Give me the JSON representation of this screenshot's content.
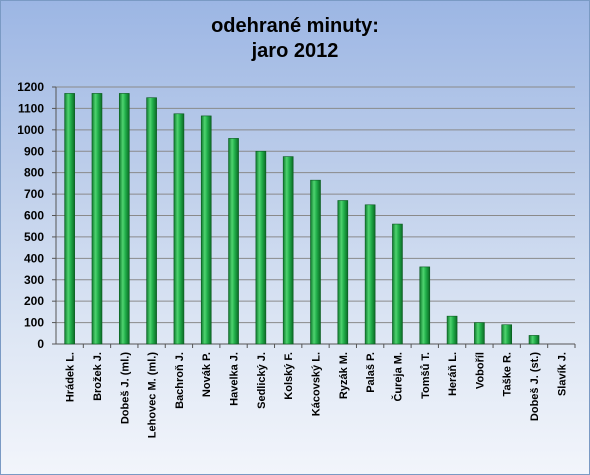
{
  "chart_data": {
    "type": "bar",
    "title_line1": "odehrané minuty:",
    "title_line2": "jaro 2012",
    "xlabel": "",
    "ylabel": "",
    "ylim": [
      0,
      1200
    ],
    "yticks": [
      0,
      100,
      200,
      300,
      400,
      500,
      600,
      700,
      800,
      900,
      1000,
      1100,
      1200
    ],
    "grid": true,
    "legend": "none",
    "bar_color": "#1fae48",
    "categories": [
      "Hrádek L.",
      "Brožek J.",
      "Dobeš J. (ml.)",
      "Lehovec M. (ml.)",
      "Bachroň J.",
      "Novák P.",
      "Havelka J.",
      "Sedlický J.",
      "Kolský F.",
      "Kácovský L.",
      "Ryzák M.",
      "Palaš P.",
      "Čureja M.",
      "Tomšů T.",
      "Heráň L.",
      "Voboříl",
      "Taške R.",
      "Dobeš J. (st.)",
      "Slavík J."
    ],
    "values": [
      1170,
      1170,
      1170,
      1150,
      1075,
      1065,
      960,
      900,
      875,
      765,
      670,
      650,
      560,
      360,
      130,
      100,
      90,
      40,
      0
    ]
  }
}
